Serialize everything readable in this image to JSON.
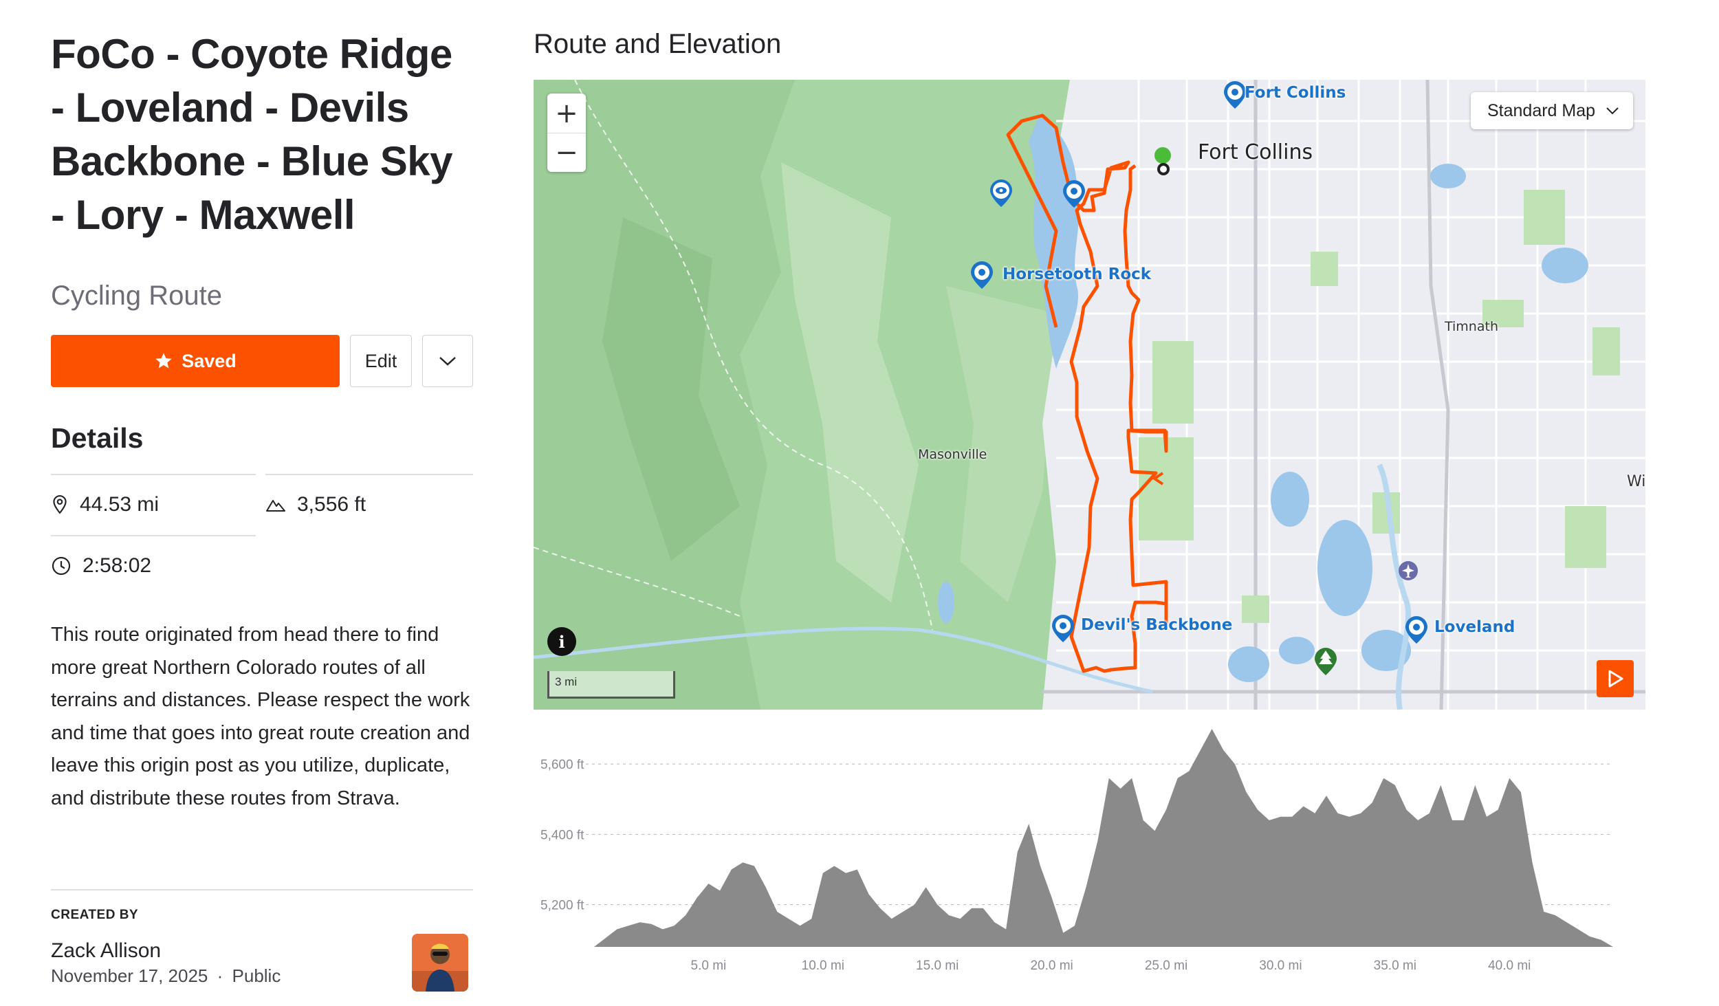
{
  "route": {
    "title": "FoCo - Coyote Ridge - Loveland - Devils Backbone - Blue Sky - Lory - Maxwell",
    "type": "Cycling Route"
  },
  "actions": {
    "saved_label": "Saved",
    "edit_label": "Edit"
  },
  "details": {
    "heading": "Details",
    "distance": "44.53 mi",
    "elevation_gain": "3,556 ft",
    "moving_time": "2:58:02"
  },
  "description": "This route originated from   head there to find more great Northern Colorado routes of all terrains and distances. Please respect the work and time that goes into great route creation and leave this origin post as you utilize, duplicate, and distribute these routes from Strava.",
  "creator": {
    "label": "CREATED BY",
    "name": "Zack Allison",
    "date": "November 17, 2025",
    "separator": "·",
    "visibility": "Public"
  },
  "map_section": {
    "title": "Route and Elevation",
    "map_type": "Standard Map",
    "scale_label": "3 mi",
    "pois": [
      "Fort Collins",
      "Horsetooth Rock",
      "Devil's Backbone",
      "Loveland"
    ],
    "places": [
      "Fort Collins"
    ],
    "towns": [
      "Masonville",
      "Timnath",
      "Wi"
    ]
  },
  "colors": {
    "brand": "#fc5200",
    "route": "#fc5200",
    "poi": "#1a73c8",
    "elevation_fill": "#8a8a8a"
  },
  "icons": [
    "star-icon",
    "chevron-down-icon",
    "location-pin-icon",
    "mountain-icon",
    "clock-icon",
    "zoom-in-icon",
    "zoom-out-icon",
    "info-icon",
    "play-icon",
    "camera-icon",
    "eye-icon",
    "tree-icon",
    "airport-icon"
  ],
  "chart_data": {
    "type": "area",
    "xlabel": "",
    "ylabel": "",
    "x_ticks": [
      "5.0 mi",
      "10.0 mi",
      "15.0 mi",
      "20.0 mi",
      "25.0 mi",
      "30.0 mi",
      "35.0 mi",
      "40.0 mi"
    ],
    "y_ticks": [
      "5,600 ft",
      "5,400 ft",
      "5,200 ft"
    ],
    "xlim": [
      0,
      44.53
    ],
    "ylim": [
      5080,
      5700
    ],
    "grid": true,
    "series": [
      {
        "x": [
          0,
          1,
          1.5,
          2,
          2.5,
          3,
          3.5,
          4,
          4.5,
          5,
          5.5,
          6,
          6.5,
          7,
          7.5,
          8,
          8.5,
          9,
          9.5,
          10,
          10.5,
          11,
          11.5,
          12,
          12.5,
          13,
          13.5,
          14,
          14.5,
          15,
          15.5,
          16,
          16.5,
          17,
          17.5,
          18,
          18.5,
          19,
          19.5,
          20,
          20.5,
          21,
          21.5,
          22,
          22.5,
          23,
          23.5,
          24,
          24.5,
          25,
          25.5,
          26,
          26.5,
          27,
          27.5,
          28,
          28.5,
          29,
          29.5,
          30,
          30.5,
          31,
          31.5,
          32,
          32.5,
          33,
          33.5,
          34,
          34.5,
          35,
          35.5,
          36,
          36.5,
          37,
          37.5,
          38,
          38.5,
          39,
          39.5,
          40,
          40.5,
          41,
          41.5,
          42,
          42.5,
          43,
          43.5,
          44,
          44.53
        ],
        "y": [
          5080,
          5130,
          5140,
          5150,
          5145,
          5130,
          5140,
          5170,
          5220,
          5260,
          5240,
          5300,
          5320,
          5310,
          5250,
          5180,
          5160,
          5140,
          5160,
          5290,
          5310,
          5290,
          5300,
          5230,
          5190,
          5160,
          5180,
          5200,
          5250,
          5200,
          5170,
          5160,
          5190,
          5190,
          5150,
          5130,
          5350,
          5430,
          5310,
          5220,
          5120,
          5140,
          5250,
          5380,
          5560,
          5530,
          5560,
          5440,
          5410,
          5470,
          5560,
          5580,
          5640,
          5700,
          5640,
          5600,
          5520,
          5470,
          5440,
          5450,
          5450,
          5480,
          5460,
          5510,
          5460,
          5450,
          5460,
          5490,
          5560,
          5540,
          5470,
          5440,
          5460,
          5540,
          5440,
          5440,
          5540,
          5450,
          5470,
          5560,
          5520,
          5320,
          5180,
          5170,
          5150,
          5130,
          5110,
          5100,
          5080
        ]
      }
    ]
  }
}
